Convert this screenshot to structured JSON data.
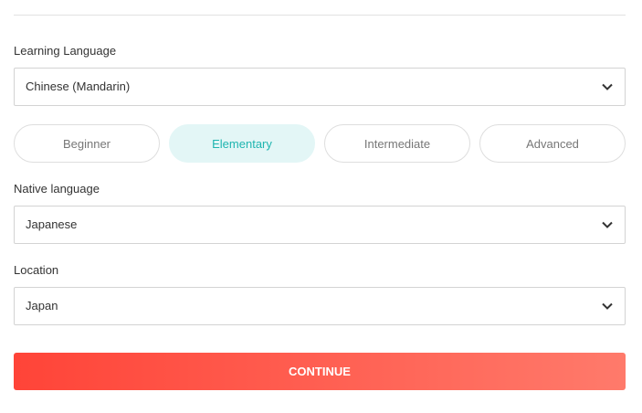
{
  "learning_language": {
    "label": "Learning Language",
    "value": "Chinese (Mandarin)",
    "icon": "chevron-down-icon"
  },
  "levels": [
    {
      "label": "Beginner",
      "selected": false
    },
    {
      "label": "Elementary",
      "selected": true
    },
    {
      "label": "Intermediate",
      "selected": false
    },
    {
      "label": "Advanced",
      "selected": false
    }
  ],
  "native_language": {
    "label": "Native language",
    "value": "Japanese",
    "icon": "chevron-down-icon"
  },
  "location": {
    "label": "Location",
    "value": "Japan",
    "icon": "chevron-down-icon"
  },
  "continue_label": "CONTINUE",
  "colors": {
    "accent": "#1fb5b0",
    "accent_bg": "#e3f6f6",
    "button_start": "#ff4438",
    "button_end": "#ff7a6b"
  }
}
